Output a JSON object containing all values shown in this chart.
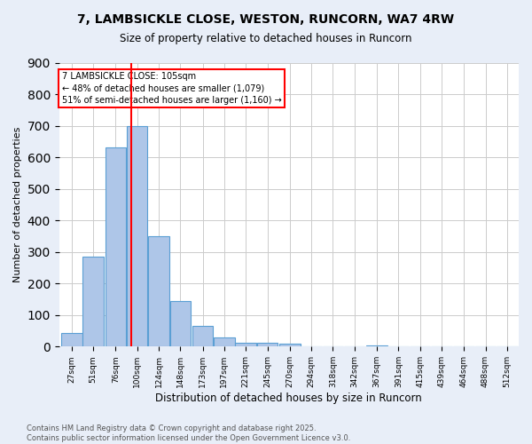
{
  "title1": "7, LAMBSICKLE CLOSE, WESTON, RUNCORN, WA7 4RW",
  "title2": "Size of property relative to detached houses in Runcorn",
  "xlabel": "Distribution of detached houses by size in Runcorn",
  "ylabel": "Number of detached properties",
  "bins": [
    27,
    51,
    76,
    100,
    124,
    148,
    173,
    197,
    221,
    245,
    270,
    294,
    318,
    342,
    367,
    391,
    415,
    439,
    464,
    488,
    512
  ],
  "bar_heights": [
    42,
    285,
    630,
    700,
    350,
    145,
    65,
    30,
    13,
    11,
    9,
    0,
    0,
    0,
    5,
    0,
    0,
    0,
    0,
    0,
    0
  ],
  "bar_color": "#aec6e8",
  "bar_edge_color": "#5a9fd4",
  "red_line_x": 105,
  "annotation_line1": "7 LAMBSICKLE CLOSE: 105sqm",
  "annotation_line2": "← 48% of detached houses are smaller (1,079)",
  "annotation_line3": "51% of semi-detached houses are larger (1,160) →",
  "ylim": [
    0,
    900
  ],
  "yticks": [
    0,
    100,
    200,
    300,
    400,
    500,
    600,
    700,
    800,
    900
  ],
  "footer1": "Contains HM Land Registry data © Crown copyright and database right 2025.",
  "footer2": "Contains public sector information licensed under the Open Government Licence v3.0.",
  "bg_color": "#e8eef8",
  "plot_bg_color": "#ffffff"
}
